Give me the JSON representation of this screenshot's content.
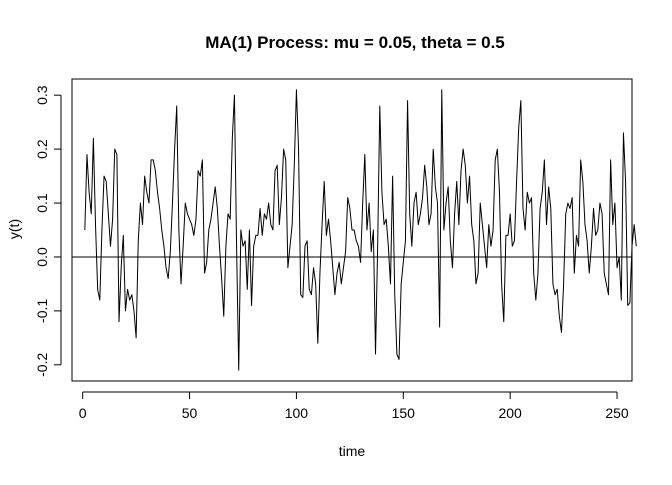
{
  "chart_data": {
    "type": "line",
    "title": "MA(1) Process: mu = 0.05, theta = 0.5",
    "xlabel": "time",
    "ylabel": "y(t)",
    "xlim": [
      -5,
      257
    ],
    "ylim": [
      -0.23,
      0.33
    ],
    "x_ticks": [
      0,
      50,
      100,
      150,
      200,
      250
    ],
    "y_ticks": [
      -0.2,
      -0.1,
      0.0,
      0.1,
      0.2,
      0.3
    ],
    "x_tick_labels": [
      "0",
      "50",
      "100",
      "150",
      "200",
      "250"
    ],
    "y_tick_labels": [
      "-0.2",
      "-0.1",
      "0.0",
      "0.1",
      "0.2",
      "0.3"
    ],
    "hline": 0.0,
    "grid": false,
    "series": [
      {
        "name": "y(t)",
        "x_start": 1,
        "x_step": 1,
        "values": [
          0.05,
          0.19,
          0.12,
          0.08,
          0.22,
          0.06,
          -0.06,
          -0.08,
          0.05,
          0.15,
          0.14,
          0.08,
          0.02,
          0.07,
          0.2,
          0.19,
          -0.12,
          -0.02,
          0.04,
          -0.1,
          -0.06,
          -0.08,
          -0.07,
          -0.1,
          -0.15,
          0.03,
          0.1,
          0.06,
          0.15,
          0.12,
          0.1,
          0.18,
          0.18,
          0.16,
          0.12,
          0.09,
          0.05,
          0.02,
          -0.02,
          -0.04,
          0.01,
          0.1,
          0.2,
          0.28,
          0.05,
          -0.05,
          0.02,
          0.1,
          0.08,
          0.07,
          0.06,
          0.04,
          0.07,
          0.16,
          0.15,
          0.18,
          -0.03,
          -0.01,
          0.05,
          0.07,
          0.1,
          0.13,
          0.09,
          0.02,
          -0.04,
          -0.11,
          0.02,
          0.08,
          0.07,
          0.22,
          0.3,
          0.02,
          -0.21,
          0.05,
          0.02,
          0.03,
          -0.06,
          0.05,
          -0.09,
          0.02,
          0.04,
          0.04,
          0.09,
          0.04,
          0.08,
          0.07,
          0.1,
          0.06,
          0.05,
          0.16,
          0.17,
          0.06,
          0.11,
          0.2,
          0.18,
          -0.02,
          0.02,
          0.06,
          0.17,
          0.31,
          0.2,
          -0.07,
          -0.075,
          0.02,
          0.03,
          -0.06,
          -0.07,
          -0.02,
          -0.05,
          -0.16,
          -0.03,
          0.06,
          0.14,
          0.04,
          0.07,
          0.03,
          -0.02,
          -0.07,
          -0.03,
          -0.01,
          -0.05,
          -0.02,
          0.01,
          0.11,
          0.09,
          0.05,
          0.05,
          0.03,
          0.02,
          -0.01,
          0.1,
          0.19,
          0.05,
          0.1,
          0.01,
          0.05,
          -0.18,
          0.02,
          0.28,
          0.12,
          0.06,
          0.07,
          0.02,
          -0.05,
          0.15,
          -0.07,
          -0.18,
          -0.19,
          -0.05,
          -0.01,
          0.03,
          0.29,
          0.08,
          0.02,
          0.1,
          0.12,
          0.06,
          0.08,
          0.11,
          0.17,
          0.13,
          0.06,
          0.08,
          0.2,
          0.13,
          0.1,
          -0.13,
          0.31,
          0.05,
          0.1,
          0.13,
          0.03,
          -0.02,
          0.08,
          0.14,
          0.06,
          0.16,
          0.2,
          0.17,
          0.1,
          0.15,
          0.06,
          0.03,
          -0.05,
          -0.03,
          0.1,
          0.06,
          0.02,
          -0.02,
          0.06,
          0.02,
          0.05,
          0.18,
          0.2,
          0.12,
          -0.05,
          -0.12,
          0.04,
          0.04,
          0.08,
          0.02,
          0.03,
          0.14,
          0.24,
          0.29,
          0.09,
          0.05,
          0.12,
          0.1,
          0.11,
          -0.03,
          -0.08,
          -0.03,
          0.09,
          0.12,
          0.18,
          0.06,
          0.13,
          0.09,
          -0.05,
          -0.07,
          -0.06,
          -0.11,
          -0.14,
          -0.05,
          0.08,
          0.1,
          0.09,
          0.11,
          -0.03,
          0.04,
          0.02,
          0.18,
          0.14,
          0.06,
          0.03,
          -0.03,
          0.02,
          0.09,
          0.04,
          0.05,
          0.1,
          0.08,
          -0.03,
          -0.05,
          -0.07,
          0.18,
          0.06,
          0.1,
          -0.02,
          0.0,
          -0.08,
          0.23,
          0.14,
          -0.09,
          -0.085,
          0.02,
          0.06,
          0.02
        ]
      }
    ]
  }
}
